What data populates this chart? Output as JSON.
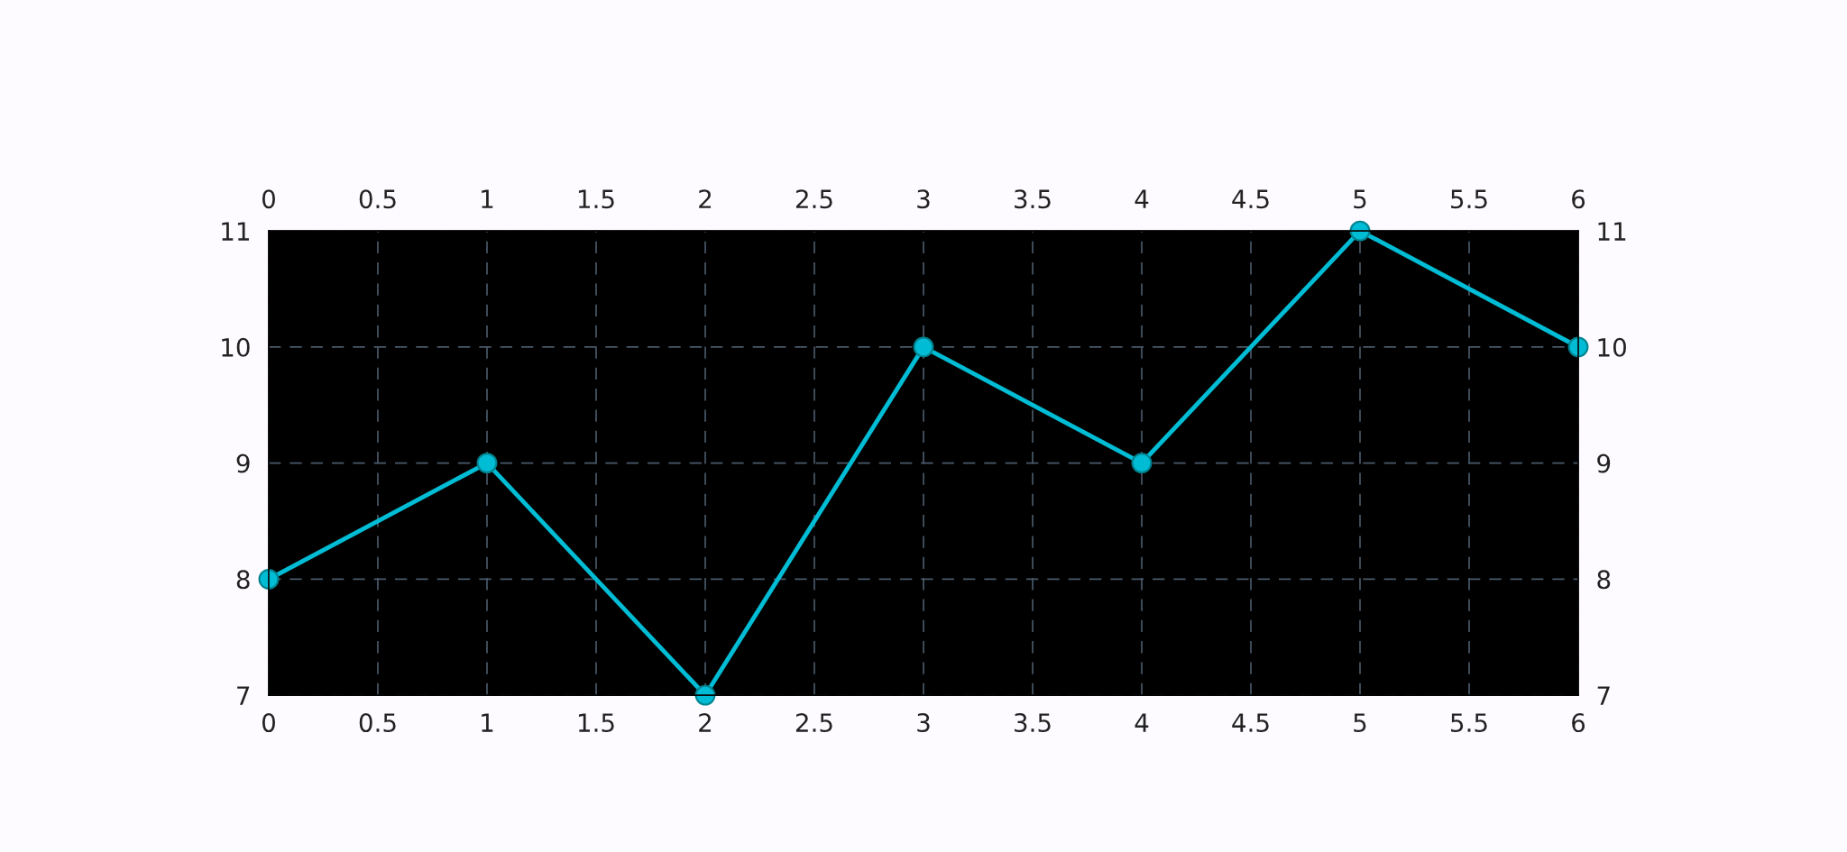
{
  "chart_data": {
    "type": "line",
    "x": [
      0,
      1,
      2,
      3,
      4,
      5,
      6
    ],
    "series": [
      {
        "color": "#00bcd4",
        "values": [
          8,
          9,
          7,
          10,
          9,
          11,
          10
        ]
      }
    ],
    "xlim": [
      0,
      6
    ],
    "xticks": [
      0,
      0.5,
      1,
      1.5,
      2,
      2.5,
      3,
      3.5,
      4,
      4.5,
      5,
      5.5,
      6
    ],
    "x2lim": [
      0,
      6
    ],
    "x2ticks": [
      0,
      0.5,
      1,
      1.5,
      2,
      2.5,
      3,
      3.5,
      4,
      4.5,
      5,
      5.5,
      6
    ],
    "ylim": [
      7,
      11
    ],
    "yticks": [
      7,
      8,
      9,
      10,
      11
    ],
    "y2lim": [
      7,
      11
    ],
    "y2ticks": [
      7,
      8,
      9,
      10,
      11
    ],
    "grid": true,
    "marker": "circle",
    "line_style": "solid"
  }
}
